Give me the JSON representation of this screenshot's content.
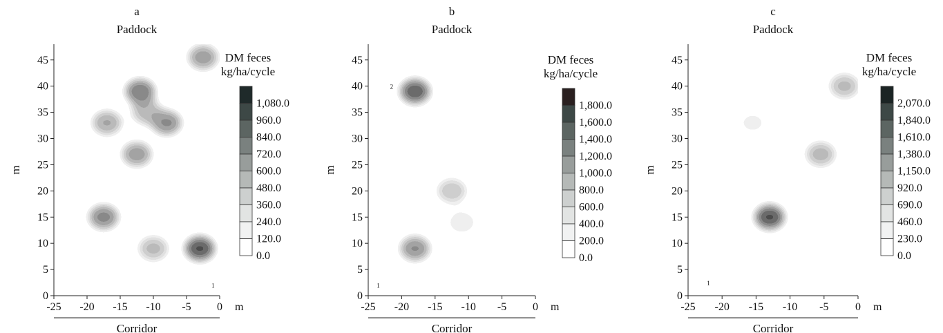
{
  "chart_data": [
    {
      "type": "heatmap",
      "panel_label": "a",
      "title": "Paddock",
      "bottom_label": "Corridor",
      "ylabel": "m",
      "xunit": "m",
      "xlim": [
        -25,
        0
      ],
      "ylim": [
        0,
        48
      ],
      "xticks": [
        -25,
        -20,
        -15,
        -10,
        -5,
        0
      ],
      "yticks": [
        0,
        5,
        10,
        15,
        20,
        25,
        30,
        35,
        40,
        45
      ],
      "legend_title": [
        "DM feces",
        "kg/ha/cycle"
      ],
      "legend_labels": [
        "1,080.0",
        "960.0",
        "840.0",
        "720.0",
        "600.0",
        "480.0",
        "360.0",
        "240.0",
        "120.0",
        "0.0"
      ],
      "legend_colors": [
        "#1f2a2a",
        "#3d4846",
        "#5c6562",
        "#7a817f",
        "#989d9b",
        "#b5b9b7",
        "#cdd0cf",
        "#e2e4e3",
        "#f1f2f2",
        "#ffffff"
      ],
      "annotations": [
        {
          "text": "1",
          "x": -1,
          "y": 1.5
        }
      ],
      "peak_values": [
        {
          "x": -3,
          "y": 9,
          "value": 1180
        },
        {
          "x": -12,
          "y": 39,
          "value": 960
        },
        {
          "x": -8,
          "y": 33,
          "value": 880
        },
        {
          "x": -17.5,
          "y": 15,
          "value": 900
        },
        {
          "x": -2.5,
          "y": 45.5,
          "value": 820
        },
        {
          "x": -12.5,
          "y": 27,
          "value": 820
        },
        {
          "x": -17,
          "y": 33,
          "value": 760
        },
        {
          "x": -10,
          "y": 9,
          "value": 680
        },
        {
          "x": -11,
          "y": 35,
          "value": 700
        }
      ]
    },
    {
      "type": "heatmap",
      "panel_label": "b",
      "title": "Paddock",
      "bottom_label": "Corridor",
      "ylabel": "m",
      "xunit": "m",
      "xlim": [
        -25,
        0
      ],
      "ylim": [
        0,
        48
      ],
      "xticks": [
        -25,
        -20,
        -15,
        -10,
        -5,
        0
      ],
      "yticks": [
        0,
        5,
        10,
        15,
        20,
        25,
        30,
        35,
        40,
        45
      ],
      "legend_title": [
        "DM feces",
        "kg/ha/cycle"
      ],
      "legend_labels": [
        "1,800.0",
        "1,600.0",
        "1,400.0",
        "1,200.0",
        "1,000.0",
        "800.0",
        "600.0",
        "400.0",
        "200.0",
        "0.0"
      ],
      "legend_colors": [
        "#2a2020",
        "#3d4846",
        "#5c6562",
        "#7a817f",
        "#989d9b",
        "#b5b9b7",
        "#cdd0cf",
        "#e2e4e3",
        "#f1f2f2",
        "#ffffff"
      ],
      "annotations": [
        {
          "text": "2",
          "x": -21.5,
          "y": 39.5
        },
        {
          "text": "1",
          "x": -23.5,
          "y": 1.5
        }
      ],
      "peak_values": [
        {
          "x": -18,
          "y": 39,
          "value": 1750
        },
        {
          "x": -18,
          "y": 9,
          "value": 1450
        },
        {
          "x": -12.5,
          "y": 20,
          "value": 1050
        },
        {
          "x": -11,
          "y": 14,
          "value": 700
        }
      ]
    },
    {
      "type": "heatmap",
      "panel_label": "c",
      "title": "Paddock",
      "bottom_label": "Corridor",
      "ylabel": "m",
      "xunit": "m",
      "xlim": [
        -25,
        0
      ],
      "ylim": [
        0,
        48
      ],
      "xticks": [
        -25,
        -20,
        -15,
        -10,
        -5,
        0
      ],
      "yticks": [
        0,
        5,
        10,
        15,
        20,
        25,
        30,
        35,
        40,
        45
      ],
      "legend_title": [
        "DM feces",
        "kg/ha/cycle"
      ],
      "legend_labels": [
        "2,070.0",
        "1,840.0",
        "1,610.0",
        "1,380.0",
        "1,150.0",
        "920.0",
        "690.0",
        "460.0",
        "230.0",
        "0.0"
      ],
      "legend_colors": [
        "#1b2424",
        "#3d4846",
        "#5c6562",
        "#7a817f",
        "#989d9b",
        "#b5b9b7",
        "#cdd0cf",
        "#e2e4e3",
        "#f1f2f2",
        "#ffffff"
      ],
      "annotations": [
        {
          "text": "1",
          "x": -22,
          "y": 2
        }
      ],
      "peak_values": [
        {
          "x": -13,
          "y": 15,
          "value": 2150
        },
        {
          "x": -5.5,
          "y": 27,
          "value": 1350
        },
        {
          "x": -2,
          "y": 40,
          "value": 1300
        },
        {
          "x": -15.5,
          "y": 33,
          "value": 700
        }
      ]
    }
  ]
}
